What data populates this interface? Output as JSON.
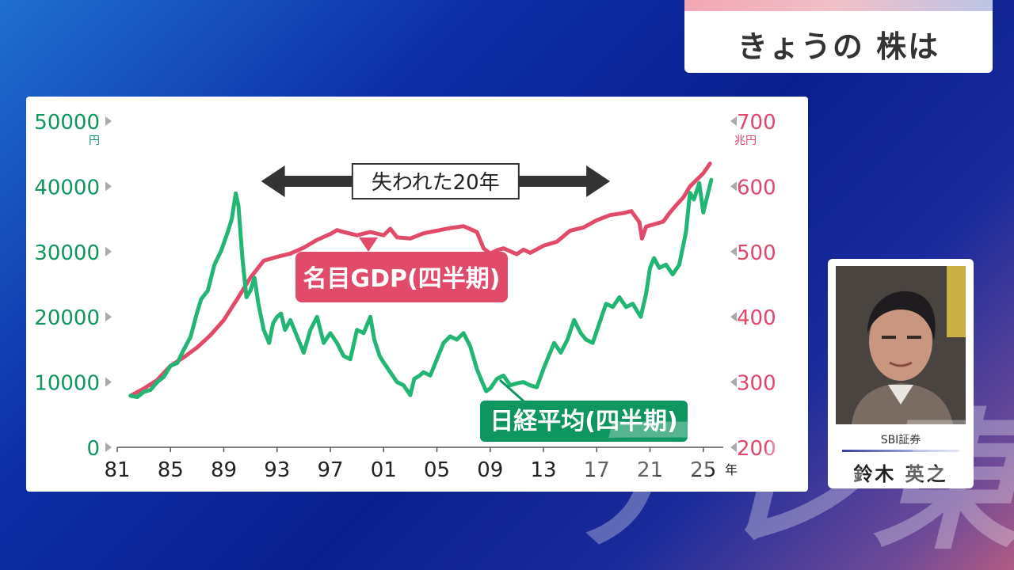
{
  "header": {
    "title": "きょうの 株は"
  },
  "speaker": {
    "company": "SBI証券",
    "name": "鈴木 英之"
  },
  "watermark": "テレ東",
  "colors": {
    "nikkei": "#22b573",
    "gdp": "#e24a6a",
    "arrow": "#333333",
    "label_green": "#0e9560",
    "axis_gdp": "#e0476a",
    "tick_text": "#222222"
  },
  "chart_data": {
    "type": "line",
    "title": "",
    "x_axis": {
      "ticks": [
        "81",
        "85",
        "89",
        "93",
        "97",
        "01",
        "05",
        "09",
        "13",
        "17",
        "21",
        "25"
      ],
      "unit": "年",
      "range": [
        1981,
        2026.5
      ]
    },
    "y_left": {
      "range": [
        0,
        50000
      ],
      "ticks": [
        "0",
        "10000",
        "20000",
        "30000",
        "40000",
        "50000"
      ],
      "unit": "円"
    },
    "y_right": {
      "range": [
        200,
        700
      ],
      "ticks": [
        "200",
        "300",
        "400",
        "500",
        "600",
        "700"
      ],
      "unit": "兆円"
    },
    "annotation": {
      "text": "失われた20年",
      "from": 1991.8,
      "to": 2018
    },
    "series": [
      {
        "name": "日経平均(四半期)",
        "axis": "left",
        "x": [
          1982,
          1982.5,
          1983,
          1983.5,
          1984,
          1984.5,
          1985,
          1985.5,
          1986,
          1986.5,
          1987,
          1987.3,
          1987.8,
          1988.3,
          1988.8,
          1989.3,
          1989.6,
          1989.9,
          1990.1,
          1990.4,
          1990.7,
          1991,
          1991.3,
          1991.6,
          1992,
          1992.4,
          1992.7,
          1993,
          1993.3,
          1993.6,
          1994,
          1994.5,
          1995,
          1995.5,
          1996,
          1996.5,
          1997,
          1997.5,
          1998,
          1998.5,
          1999,
          1999.5,
          2000,
          2000.3,
          2000.7,
          2001,
          2001.5,
          2002,
          2002.5,
          2003,
          2003.3,
          2003.7,
          2004,
          2004.5,
          2005,
          2005.5,
          2006,
          2006.5,
          2007,
          2007.5,
          2008,
          2008.3,
          2008.7,
          2009,
          2009.5,
          2010,
          2010.5,
          2011,
          2011.5,
          2012,
          2012.5,
          2013,
          2013.4,
          2013.8,
          2014.3,
          2014.8,
          2015.3,
          2015.8,
          2016.2,
          2016.7,
          2017.2,
          2017.7,
          2018.2,
          2018.7,
          2019.2,
          2019.7,
          2020,
          2020.3,
          2020.7,
          2021,
          2021.3,
          2021.7,
          2022.2,
          2022.7,
          2023.2,
          2023.7,
          2024,
          2024.3,
          2024.7,
          2025,
          2025.3,
          2025.6
        ],
        "values": [
          7900,
          7700,
          8500,
          8800,
          10000,
          10800,
          12500,
          12900,
          15000,
          16900,
          20700,
          22700,
          24000,
          28000,
          30100,
          33000,
          35000,
          38915,
          37000,
          29000,
          23000,
          24000,
          26000,
          22000,
          18000,
          16000,
          19000,
          20000,
          20500,
          18000,
          19500,
          17000,
          14500,
          18000,
          20000,
          16000,
          17500,
          16000,
          14000,
          13500,
          18000,
          17500,
          20000,
          16500,
          14000,
          13000,
          11500,
          10000,
          9500,
          8000,
          10500,
          11000,
          11500,
          11000,
          13500,
          16000,
          17000,
          16500,
          17500,
          15500,
          12000,
          10500,
          8600,
          9000,
          10500,
          11000,
          9500,
          9800,
          10000,
          9500,
          9200,
          12000,
          14000,
          16000,
          14500,
          16500,
          19500,
          17500,
          16500,
          16000,
          19000,
          22000,
          21500,
          23000,
          21500,
          22000,
          21000,
          20000,
          23500,
          27500,
          29000,
          27500,
          28000,
          26500,
          28000,
          33000,
          39000,
          38000,
          40500,
          36000,
          38500,
          41000
        ],
        "end_label": "日経平均(四半期)"
      },
      {
        "name": "名目GDP(四半期)",
        "axis": "right",
        "x": [
          1982,
          1983,
          1984,
          1985,
          1986,
          1987,
          1988,
          1989,
          1990,
          1991,
          1992,
          1993,
          1994,
          1995,
          1996,
          1997,
          1997.5,
          1998,
          1999,
          2000,
          2001,
          2001.5,
          2002,
          2003,
          2004,
          2005,
          2006,
          2007,
          2008,
          2008.5,
          2009,
          2009.5,
          2010,
          2011,
          2011.5,
          2012,
          2013,
          2014,
          2015,
          2016,
          2017,
          2018,
          2019,
          2019.6,
          2020.2,
          2020.4,
          2020.7,
          2021,
          2021.5,
          2022,
          2022.5,
          2023,
          2023.5,
          2024,
          2024.5,
          2025,
          2025.5
        ],
        "values": [
          279,
          290,
          303,
          325,
          338,
          353,
          372,
          395,
          427,
          460,
          486,
          492,
          497,
          506,
          518,
          527,
          533,
          530,
          525,
          530,
          525,
          535,
          522,
          520,
          528,
          532,
          536,
          539,
          530,
          505,
          497,
          502,
          505,
          496,
          503,
          498,
          509,
          515,
          532,
          537,
          548,
          556,
          559,
          562,
          545,
          520,
          538,
          540,
          543,
          546,
          560,
          572,
          583,
          600,
          610,
          620,
          635
        ]
      }
    ]
  }
}
